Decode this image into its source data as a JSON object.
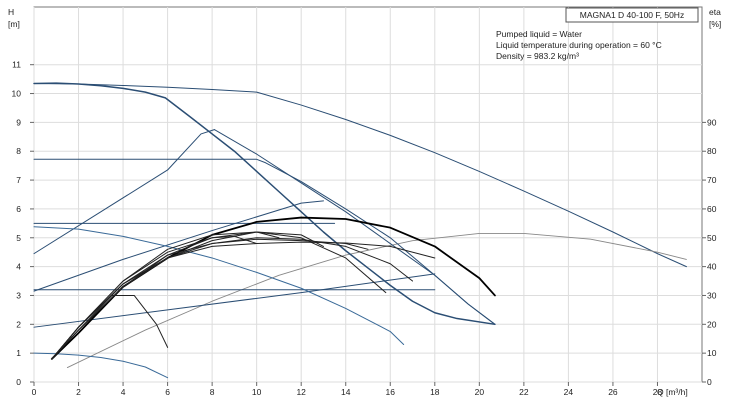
{
  "chart_data": {
    "type": "line",
    "title": "MAGNA1 D 40-100 F, 50Hz",
    "annotations": [
      "Pumped liquid = Water",
      "Liquid temperature during operation = 60 °C",
      "Density = 983.2 kg/m³"
    ],
    "x_axis": {
      "label": "Q [m³/h]",
      "min": 0,
      "max": 30,
      "ticks": [
        0,
        2,
        4,
        6,
        8,
        10,
        12,
        14,
        16,
        18,
        20,
        22,
        24,
        26,
        28
      ]
    },
    "y_axis_left": {
      "label_line1": "H",
      "label_line2": "[m]",
      "min": 0,
      "max": 13,
      "ticks": [
        0,
        1,
        2,
        3,
        4,
        5,
        6,
        7,
        8,
        9,
        10,
        11
      ]
    },
    "y_axis_right": {
      "label_line1": "eta",
      "label_line2": "[%]",
      "min": 0,
      "max": 130,
      "ticks": [
        0,
        10,
        20,
        30,
        40,
        50,
        60,
        70,
        80,
        90
      ]
    },
    "series": [
      {
        "id": "twin-max",
        "axis": "H",
        "color": "#2b4e74",
        "width": 1.0,
        "points": [
          [
            0,
            10.35
          ],
          [
            2,
            10.33
          ],
          [
            4,
            10.28
          ],
          [
            6,
            10.22
          ],
          [
            8,
            10.14
          ],
          [
            10,
            10.05
          ],
          [
            12,
            9.6
          ],
          [
            14,
            9.1
          ],
          [
            16,
            8.55
          ],
          [
            18,
            7.95
          ],
          [
            20,
            7.3
          ],
          [
            22,
            6.62
          ],
          [
            24,
            5.92
          ],
          [
            26,
            5.2
          ],
          [
            28,
            4.45
          ],
          [
            29.3,
            4.0
          ]
        ]
      },
      {
        "id": "twin-eta",
        "axis": "eta",
        "color": "#888888",
        "width": 0.9,
        "points": [
          [
            1.5,
            5
          ],
          [
            5,
            18
          ],
          [
            8,
            28
          ],
          [
            11,
            37
          ],
          [
            14,
            44
          ],
          [
            17,
            49
          ],
          [
            20,
            51.5
          ],
          [
            22,
            51.5
          ],
          [
            25,
            49.5
          ],
          [
            28,
            45
          ],
          [
            29.3,
            42.5
          ]
        ]
      },
      {
        "id": "max-curve",
        "axis": "H",
        "color": "#2b4e74",
        "width": 1.5,
        "points": [
          [
            0,
            10.35
          ],
          [
            1,
            10.36
          ],
          [
            2,
            10.33
          ],
          [
            3,
            10.27
          ],
          [
            4,
            10.18
          ],
          [
            5,
            10.05
          ],
          [
            5.9,
            9.85
          ],
          [
            7,
            9.2
          ],
          [
            8,
            8.6
          ],
          [
            9,
            8.0
          ],
          [
            10,
            7.3
          ],
          [
            11,
            6.6
          ],
          [
            12,
            5.9
          ],
          [
            13,
            5.2
          ],
          [
            14,
            4.55
          ],
          [
            15,
            3.95
          ],
          [
            16,
            3.35
          ],
          [
            17,
            2.8
          ],
          [
            18,
            2.4
          ],
          [
            19,
            2.2
          ],
          [
            20.7,
            2.0
          ]
        ]
      },
      {
        "id": "constant-pressure-max",
        "axis": "H",
        "color": "#2b4e74",
        "width": 1.0,
        "points": [
          [
            0,
            7.72
          ],
          [
            10,
            7.72
          ],
          [
            10.4,
            7.6
          ],
          [
            12,
            6.95
          ],
          [
            14,
            6.0
          ],
          [
            16,
            5.0
          ],
          [
            18,
            3.7
          ],
          [
            19.5,
            2.7
          ],
          [
            20.7,
            2.0
          ]
        ]
      },
      {
        "id": "proportional-high-line",
        "axis": "H",
        "color": "#2b4e74",
        "width": 1.0,
        "points": [
          [
            0,
            4.45
          ],
          [
            3,
            5.9
          ],
          [
            6,
            7.35
          ],
          [
            7.5,
            8.6
          ],
          [
            8.1,
            8.75
          ]
        ]
      },
      {
        "id": "proportional-high-drop",
        "axis": "H",
        "color": "#2b4e74",
        "width": 1.0,
        "points": [
          [
            8.1,
            8.75
          ],
          [
            10,
            7.9
          ],
          [
            12,
            6.9
          ],
          [
            14,
            5.9
          ],
          [
            16,
            4.8
          ],
          [
            18,
            3.7
          ],
          [
            19.5,
            2.7
          ],
          [
            20.7,
            2.0
          ]
        ]
      },
      {
        "id": "proportional-mid-line",
        "axis": "H",
        "color": "#2b4e74",
        "width": 1.0,
        "points": [
          [
            0,
            3.15
          ],
          [
            4,
            4.25
          ],
          [
            8,
            5.25
          ],
          [
            12,
            6.2
          ],
          [
            13,
            6.28
          ]
        ]
      },
      {
        "id": "constant-pressure-mid",
        "axis": "H",
        "color": "#2b4e74",
        "width": 1.0,
        "points": [
          [
            0,
            5.5
          ],
          [
            13.5,
            5.5
          ]
        ]
      },
      {
        "id": "proportional-low-line",
        "axis": "H",
        "color": "#2b4e74",
        "width": 1.0,
        "points": [
          [
            0,
            1.9
          ],
          [
            6,
            2.5
          ],
          [
            12,
            3.1
          ],
          [
            18,
            3.75
          ]
        ]
      },
      {
        "id": "constant-pressure-low",
        "axis": "H",
        "color": "#2b4e74",
        "width": 1.0,
        "points": [
          [
            0,
            3.2
          ],
          [
            18,
            3.2
          ]
        ]
      },
      {
        "id": "autoadapt-curve",
        "axis": "H",
        "color": "#3a6a98",
        "width": 1.0,
        "points": [
          [
            0,
            5.38
          ],
          [
            2,
            5.3
          ],
          [
            4,
            5.05
          ],
          [
            6,
            4.7
          ],
          [
            8,
            4.3
          ],
          [
            10,
            3.8
          ],
          [
            12,
            3.25
          ],
          [
            14,
            2.55
          ],
          [
            16,
            1.75
          ],
          [
            16.6,
            1.3
          ]
        ]
      },
      {
        "id": "minimum-curve",
        "axis": "H",
        "color": "#3a6a98",
        "width": 1.0,
        "points": [
          [
            0,
            1.0
          ],
          [
            1,
            0.98
          ],
          [
            2,
            0.93
          ],
          [
            3,
            0.85
          ],
          [
            4,
            0.72
          ],
          [
            5,
            0.52
          ],
          [
            6,
            0.15
          ]
        ]
      },
      {
        "id": "eta-1",
        "axis": "eta",
        "color": "#000000",
        "width": 1.8,
        "points": [
          [
            0.8,
            8
          ],
          [
            2,
            17
          ],
          [
            4,
            33
          ],
          [
            6,
            43
          ],
          [
            8,
            51
          ],
          [
            10,
            55.5
          ],
          [
            12,
            57
          ],
          [
            14,
            56.5
          ],
          [
            16,
            53.5
          ],
          [
            18,
            47
          ],
          [
            20,
            36
          ],
          [
            20.7,
            30
          ]
        ]
      },
      {
        "id": "eta-2",
        "axis": "eta",
        "color": "#222222",
        "width": 1.0,
        "points": [
          [
            0.8,
            8
          ],
          [
            2,
            18
          ],
          [
            4,
            34
          ],
          [
            6,
            43
          ],
          [
            8,
            48
          ],
          [
            10,
            50
          ],
          [
            12,
            49.5
          ],
          [
            14,
            47
          ],
          [
            16,
            41
          ],
          [
            17,
            35
          ]
        ]
      },
      {
        "id": "eta-3",
        "axis": "eta",
        "color": "#222222",
        "width": 1.0,
        "points": [
          [
            0.8,
            8
          ],
          [
            2,
            18
          ],
          [
            4,
            33
          ],
          [
            6,
            44
          ],
          [
            8,
            50
          ],
          [
            10,
            52
          ],
          [
            12,
            50
          ],
          [
            14,
            43
          ],
          [
            15.8,
            31
          ]
        ]
      },
      {
        "id": "eta-4",
        "axis": "eta",
        "color": "#222222",
        "width": 1.0,
        "points": [
          [
            0.8,
            8
          ],
          [
            2,
            19
          ],
          [
            4,
            34
          ],
          [
            6,
            43
          ],
          [
            8,
            47
          ],
          [
            10,
            48
          ],
          [
            12,
            48.5
          ],
          [
            14,
            48.2
          ],
          [
            16,
            47
          ],
          [
            18,
            43
          ]
        ]
      },
      {
        "id": "eta-5",
        "axis": "eta",
        "color": "#222222",
        "width": 1.0,
        "points": [
          [
            0.8,
            8
          ],
          [
            2,
            19
          ],
          [
            4,
            34
          ],
          [
            6,
            44
          ],
          [
            8,
            48
          ],
          [
            10,
            49.5
          ],
          [
            12,
            49
          ],
          [
            14,
            48
          ],
          [
            15,
            46
          ]
        ]
      },
      {
        "id": "eta-6",
        "axis": "eta",
        "color": "#222222",
        "width": 1.0,
        "points": [
          [
            0.8,
            8
          ],
          [
            2,
            19
          ],
          [
            3.5,
            30
          ],
          [
            4.5,
            30
          ],
          [
            5.5,
            20
          ],
          [
            6,
            12
          ]
        ]
      },
      {
        "id": "eta-7",
        "axis": "eta",
        "color": "#222222",
        "width": 1.0,
        "points": [
          [
            0.8,
            8
          ],
          [
            2,
            19
          ],
          [
            4,
            35
          ],
          [
            6,
            45
          ],
          [
            8,
            50
          ],
          [
            9,
            50.5
          ],
          [
            10,
            48
          ]
        ]
      },
      {
        "id": "eta-8",
        "axis": "eta",
        "color": "#222222",
        "width": 1.0,
        "points": [
          [
            0.8,
            8
          ],
          [
            2,
            19
          ],
          [
            4,
            35
          ],
          [
            6,
            46
          ],
          [
            8,
            51
          ],
          [
            10,
            52
          ],
          [
            11,
            50
          ]
        ]
      },
      {
        "id": "eta-9",
        "axis": "eta",
        "color": "#222222",
        "width": 1.0,
        "points": [
          [
            0.8,
            8
          ],
          [
            2,
            18
          ],
          [
            4,
            33
          ],
          [
            6,
            43
          ],
          [
            8,
            49
          ],
          [
            10,
            52
          ],
          [
            12,
            51
          ],
          [
            13,
            47
          ]
        ]
      }
    ]
  }
}
